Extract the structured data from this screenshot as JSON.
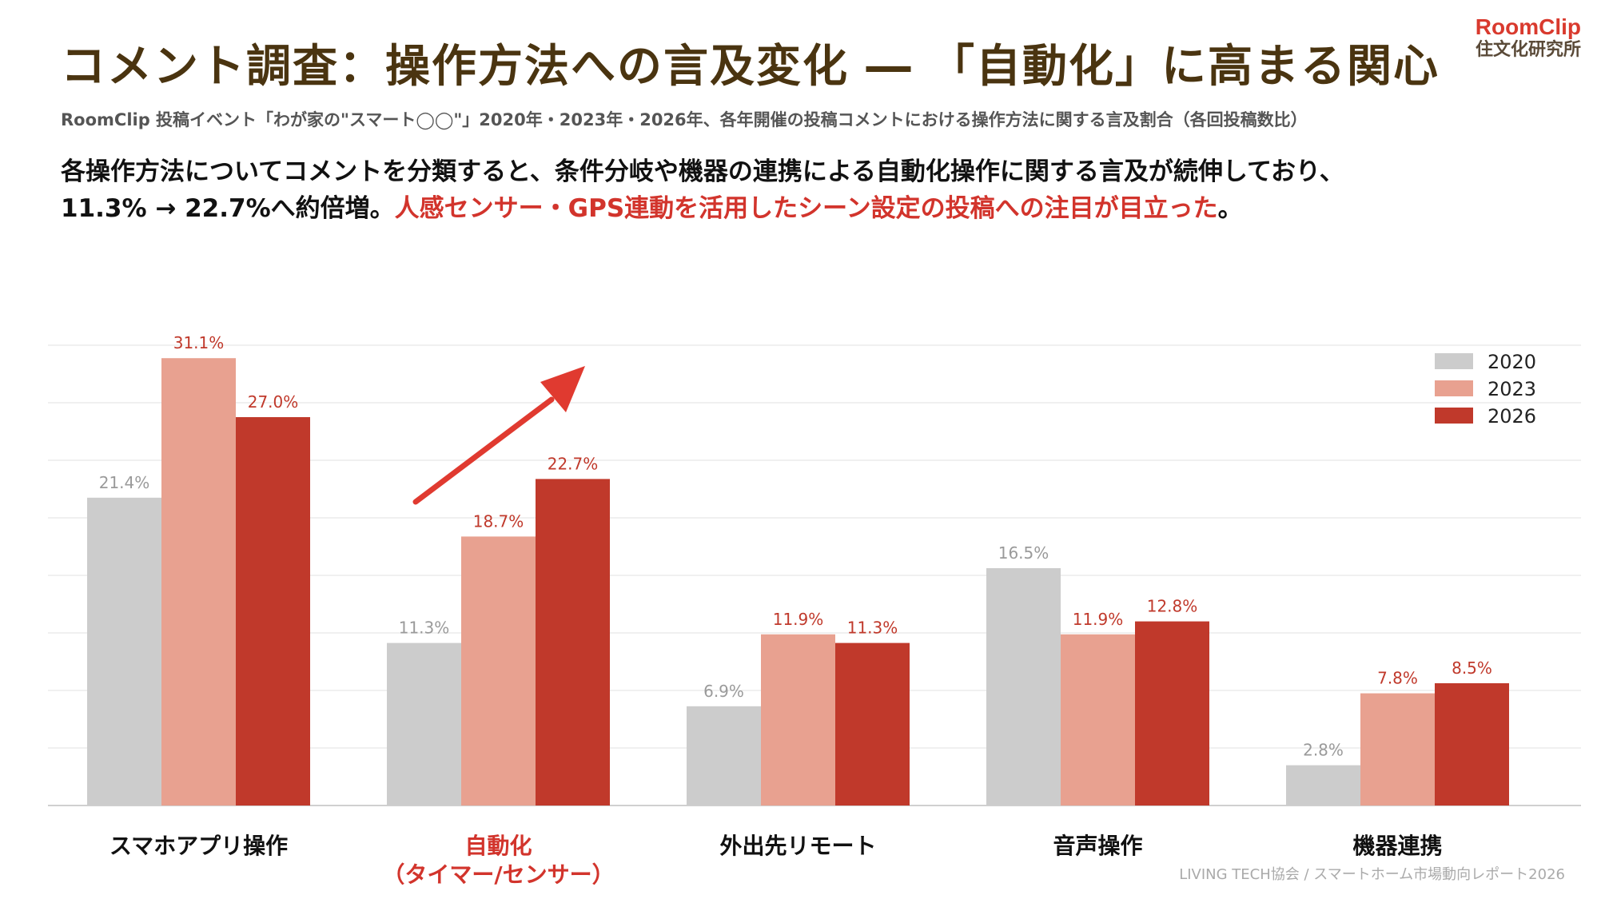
{
  "header": {
    "title": "コメント調査：操作方法への言及変化 ― 「自動化」に高まる関心",
    "logo_brand": "RoomClip",
    "logo_lab": "住文化研究所",
    "subtitle": "RoomClip 投稿イベント「わが家の\"スマート◯◯\"」2020年・2023年・2026年、各年開催の投稿コメントにおける操作方法に関する言及割合（各回投稿数比）",
    "desc_line1": "各操作方法についてコメントを分類すると、条件分岐や機器の連携による自動化操作に関する言及が続伸しており、",
    "desc_line2_plain": "11.3% → 22.7%へ約倍増。",
    "desc_line2_red": "人感センサー・GPS連動を活用したシーン設定の投稿への注目が目立った",
    "desc_line2_end": "。"
  },
  "colors": {
    "s2020": "#cccccc",
    "s2023": "#e8a190",
    "s2026": "#c0392b",
    "highlight": "#d2342c",
    "arrow": "#e03a30"
  },
  "chart_data": {
    "type": "bar",
    "categories": [
      "スマホアプリ操作",
      "自動化\n（タイマー/センサー）",
      "外出先リモート",
      "音声操作",
      "機器連携"
    ],
    "highlight_category": 1,
    "series": [
      {
        "name": "2020",
        "values": [
          21.4,
          11.3,
          6.9,
          16.5,
          2.8
        ],
        "labels": [
          "21.4%",
          "11.3%",
          "6.9%",
          "16.5%",
          "2.8%"
        ]
      },
      {
        "name": "2023",
        "values": [
          31.1,
          18.7,
          11.9,
          11.9,
          7.8
        ],
        "labels": [
          "31.1%",
          "18.7%",
          "11.9%",
          "11.9%",
          "7.8%"
        ]
      },
      {
        "name": "2026",
        "values": [
          27.0,
          22.7,
          11.3,
          12.8,
          8.5
        ],
        "labels": [
          "27.0%",
          "22.7%",
          "11.3%",
          "12.8%",
          "8.5%"
        ]
      }
    ],
    "ylim": [
      0,
      32
    ],
    "grid": true,
    "legend_position": "top-right",
    "annotation": "upward-arrow"
  },
  "footer": "LIVING TECH協会 / スマートホーム市場動向レポート2026"
}
